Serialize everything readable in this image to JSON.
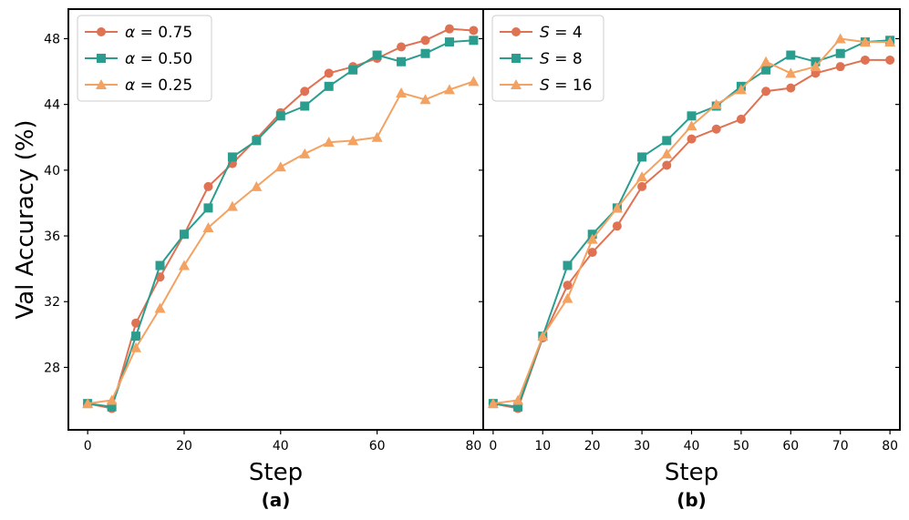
{
  "chart_data": [
    {
      "type": "line",
      "caption": "(a)",
      "xlabel": "Step",
      "ylabel": "Val Accuracy (%)",
      "xlim": [
        -4,
        82
      ],
      "ylim": [
        24.2,
        49.8
      ],
      "xticks": [
        0,
        20,
        40,
        60,
        80
      ],
      "yticks": [
        28,
        32,
        36,
        40,
        44,
        48
      ],
      "legend_position": "top-left",
      "series": [
        {
          "name": "α = 0.75",
          "var": "α",
          "val": "0.75",
          "color": "#e07254",
          "marker": "circle",
          "x": [
            0,
            5,
            10,
            15,
            20,
            25,
            30,
            35,
            40,
            45,
            50,
            55,
            60,
            65,
            70,
            75,
            80
          ],
          "y": [
            25.8,
            25.5,
            30.7,
            33.5,
            36.1,
            39.0,
            40.4,
            41.9,
            43.5,
            44.8,
            45.9,
            46.3,
            46.8,
            47.5,
            47.9,
            48.6,
            48.5
          ]
        },
        {
          "name": "α = 0.50",
          "var": "α",
          "val": "0.50",
          "color": "#2a9d8f",
          "marker": "square",
          "x": [
            0,
            5,
            10,
            15,
            20,
            25,
            30,
            35,
            40,
            45,
            50,
            55,
            60,
            65,
            70,
            75,
            80
          ],
          "y": [
            25.8,
            25.6,
            29.9,
            34.2,
            36.1,
            37.7,
            40.8,
            41.8,
            43.3,
            43.9,
            45.1,
            46.1,
            47.0,
            46.6,
            47.1,
            47.8,
            47.9
          ]
        },
        {
          "name": "α = 0.25",
          "var": "α",
          "val": "0.25",
          "color": "#f4a261",
          "marker": "triangle",
          "x": [
            0,
            5,
            10,
            15,
            20,
            25,
            30,
            35,
            40,
            45,
            50,
            55,
            60,
            65,
            70,
            75,
            80
          ],
          "y": [
            25.8,
            26.0,
            29.2,
            31.6,
            34.2,
            36.5,
            37.8,
            39.0,
            40.2,
            41.0,
            41.7,
            41.8,
            42.0,
            44.7,
            44.3,
            44.9,
            45.4
          ]
        }
      ]
    },
    {
      "type": "line",
      "caption": "(b)",
      "xlabel": "Step",
      "ylabel": "",
      "xlim": [
        -2,
        82
      ],
      "ylim": [
        24.2,
        49.8
      ],
      "xticks": [
        0,
        10,
        20,
        30,
        40,
        50,
        60,
        70,
        80
      ],
      "yticks": [
        28,
        32,
        36,
        40,
        44,
        48
      ],
      "legend_position": "top-left",
      "series": [
        {
          "name": "S = 4",
          "var": "S",
          "val": "4",
          "color": "#e07254",
          "marker": "circle",
          "x": [
            0,
            5,
            10,
            15,
            20,
            25,
            30,
            35,
            40,
            45,
            50,
            55,
            60,
            65,
            70,
            75,
            80
          ],
          "y": [
            25.8,
            25.5,
            29.8,
            33.0,
            35.0,
            36.6,
            39.0,
            40.3,
            41.9,
            42.5,
            43.1,
            44.8,
            45.0,
            45.9,
            46.3,
            46.7,
            46.7
          ]
        },
        {
          "name": "S = 8",
          "var": "S",
          "val": "8",
          "color": "#2a9d8f",
          "marker": "square",
          "x": [
            0,
            5,
            10,
            15,
            20,
            25,
            30,
            35,
            40,
            45,
            50,
            55,
            60,
            65,
            70,
            75,
            80
          ],
          "y": [
            25.8,
            25.6,
            29.9,
            34.2,
            36.1,
            37.7,
            40.8,
            41.8,
            43.3,
            43.9,
            45.1,
            46.1,
            47.0,
            46.6,
            47.1,
            47.8,
            47.9
          ]
        },
        {
          "name": "S = 16",
          "var": "S",
          "val": "16",
          "color": "#f4a261",
          "marker": "triangle",
          "x": [
            0,
            5,
            10,
            15,
            20,
            25,
            30,
            35,
            40,
            45,
            50,
            55,
            60,
            65,
            70,
            75,
            80
          ],
          "y": [
            25.8,
            26.0,
            29.9,
            32.2,
            35.8,
            37.7,
            39.6,
            41.0,
            42.7,
            44.0,
            44.9,
            46.6,
            45.9,
            46.3,
            48.0,
            47.8,
            47.8
          ]
        }
      ]
    }
  ]
}
